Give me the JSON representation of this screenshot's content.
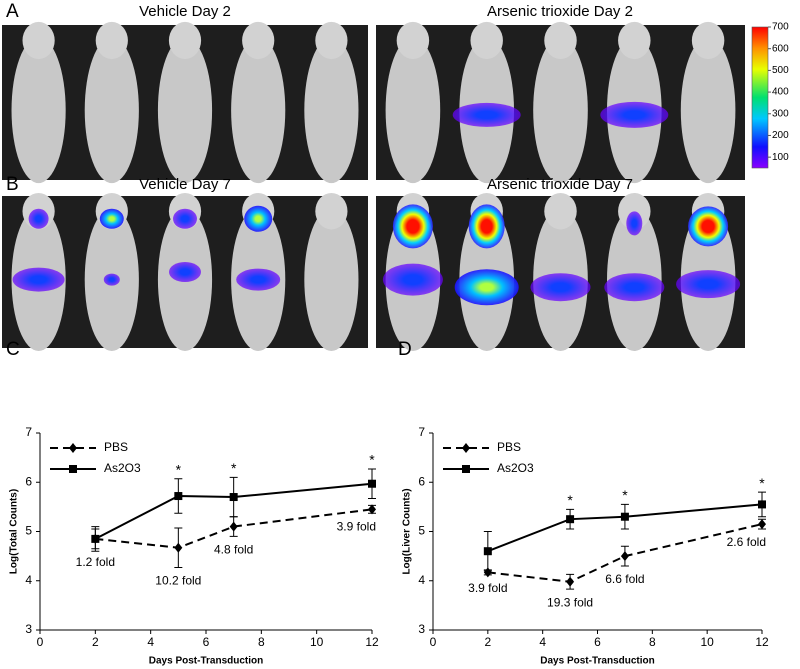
{
  "figure": {
    "panels": [
      "A",
      "B",
      "C",
      "D"
    ],
    "images": [
      "Vehicle Day 2",
      "Arsenic trioxide Day 2",
      "Vehicle Day 7",
      "Arsenic trioxide Day 7"
    ],
    "colorbar": {
      "lim": [
        50,
        700
      ],
      "ticks": [
        100,
        200,
        300,
        400,
        500,
        600,
        700
      ]
    }
  },
  "chart_data": [
    {
      "type": "line",
      "ylabel": "Log(Total Counts)",
      "xlabel": "Days Post-Transduction",
      "xlim": [
        0,
        12
      ],
      "xticks": [
        0,
        2,
        4,
        6,
        8,
        10,
        12
      ],
      "ylim": [
        3,
        7
      ],
      "yticks": [
        3,
        4,
        5,
        6,
        7
      ],
      "x": [
        2,
        5,
        7,
        12
      ],
      "series": [
        {
          "name": "PBS",
          "color": "#000000",
          "dashed": true,
          "marker": "diamond",
          "values": [
            4.85,
            4.67,
            5.1,
            5.45
          ],
          "errors": [
            0.2,
            0.4,
            0.2,
            0.08
          ]
        },
        {
          "name": "As2O3",
          "color": "#000000",
          "dashed": false,
          "marker": "square",
          "values": [
            4.85,
            5.72,
            5.7,
            5.97
          ],
          "errors": [
            0.25,
            0.35,
            0.4,
            0.3
          ]
        }
      ],
      "fold_labels": [
        "1.2 fold",
        "10.2 fold",
        "4.8 fold",
        "3.9 fold"
      ],
      "significance": [
        null,
        "*",
        "*",
        "*"
      ],
      "legend": "upper left"
    },
    {
      "type": "line",
      "ylabel": "Log(Liver Counts)",
      "xlabel": "Days Post-Transduction",
      "xlim": [
        0,
        12
      ],
      "xticks": [
        0,
        2,
        4,
        6,
        8,
        10,
        12
      ],
      "ylim": [
        3,
        7
      ],
      "yticks": [
        3,
        4,
        5,
        6,
        7
      ],
      "x": [
        2,
        5,
        7,
        12
      ],
      "series": [
        {
          "name": "PBS",
          "color": "#000000",
          "dashed": true,
          "marker": "diamond",
          "values": [
            4.17,
            3.98,
            4.5,
            5.15
          ],
          "errors": [
            0.05,
            0.15,
            0.2,
            0.1
          ]
        },
        {
          "name": "As2O3",
          "color": "#000000",
          "dashed": false,
          "marker": "square",
          "values": [
            4.6,
            5.25,
            5.3,
            5.55
          ],
          "errors": [
            0.4,
            0.2,
            0.25,
            0.25
          ]
        }
      ],
      "fold_labels": [
        "3.9 fold",
        "19.3 fold",
        "6.6 fold",
        "2.6 fold"
      ],
      "significance": [
        null,
        "*",
        "*",
        "*"
      ],
      "legend": "upper left"
    }
  ]
}
